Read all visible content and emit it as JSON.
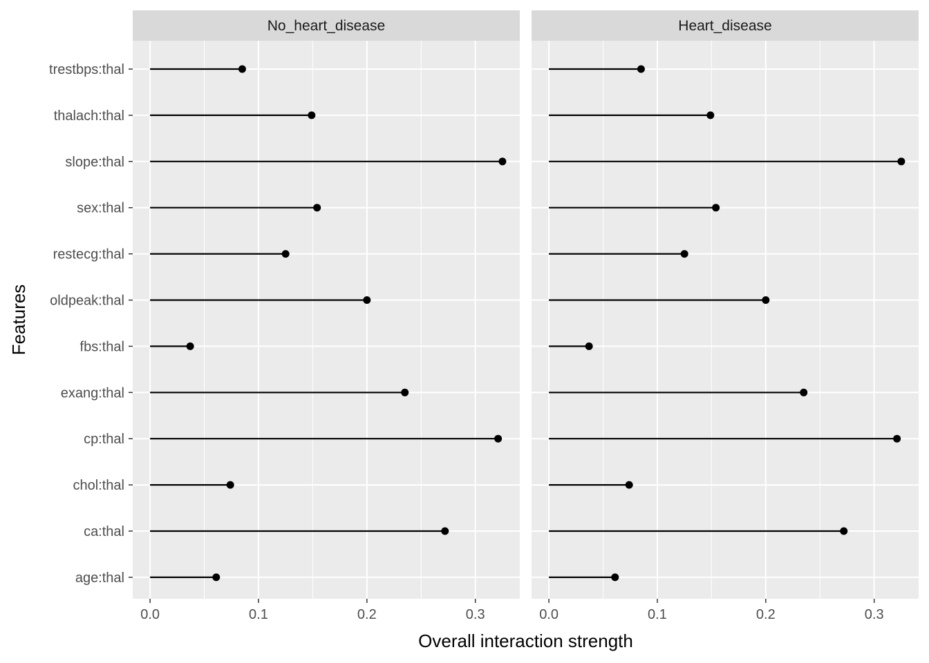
{
  "chart_data": {
    "type": "lollipop",
    "title": "",
    "xlabel": "Overall interaction strength",
    "ylabel": "Features",
    "xlim": [
      -0.016,
      0.341
    ],
    "xticks": [
      0.0,
      0.1,
      0.2,
      0.3
    ],
    "xtick_labels": [
      "0.0",
      "0.1",
      "0.2",
      "0.3"
    ],
    "categories": [
      "trestbps:thal",
      "thalach:thal",
      "slope:thal",
      "sex:thal",
      "restecg:thal",
      "oldpeak:thal",
      "fbs:thal",
      "exang:thal",
      "cp:thal",
      "chol:thal",
      "ca:thal",
      "age:thal"
    ],
    "panels": [
      {
        "name": "No_heart_disease",
        "values": [
          0.085,
          0.149,
          0.325,
          0.154,
          0.125,
          0.2,
          0.037,
          0.235,
          0.321,
          0.074,
          0.272,
          0.061
        ]
      },
      {
        "name": "Heart_disease",
        "values": [
          0.085,
          0.149,
          0.325,
          0.154,
          0.125,
          0.2,
          0.037,
          0.235,
          0.321,
          0.074,
          0.272,
          0.061
        ]
      }
    ],
    "colors": {
      "panel_bg": "#ebebeb",
      "strip_bg": "#d9d9d9",
      "grid": "#ffffff",
      "mark": "#000000",
      "tick": "#333333"
    }
  }
}
